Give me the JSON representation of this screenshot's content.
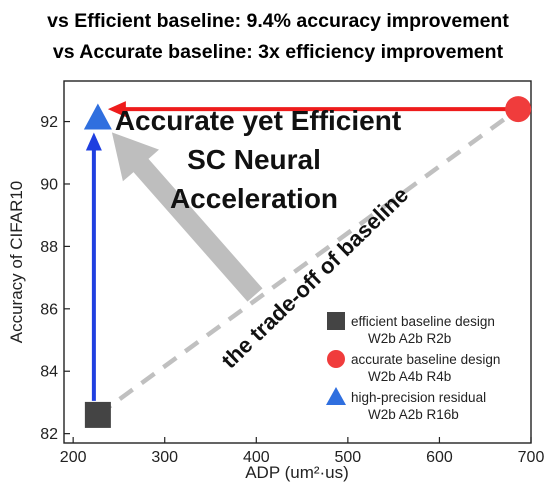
{
  "chart_data": {
    "type": "scatter",
    "headline": [
      "vs Efficient baseline: 9.4% accuracy improvement",
      "vs Accurate baseline: 3x efficiency improvement"
    ],
    "xlabel": "ADP (um²·us)",
    "ylabel": "Accuracy of CIFAR10",
    "xlim": [
      190,
      700
    ],
    "ylim": [
      81.7,
      93.3
    ],
    "xticks": [
      200,
      300,
      400,
      500,
      600,
      700
    ],
    "yticks": [
      82,
      84,
      86,
      88,
      90,
      92
    ],
    "grid": false,
    "legend_position": "bottom-right",
    "series": [
      {
        "name": "efficient baseline design",
        "config": "W2b A2b R2b",
        "marker": "square",
        "color": "#444444",
        "x": 227,
        "y": 82.6
      },
      {
        "name": "accurate baseline design",
        "config": "W2b A4b R4b",
        "marker": "circle",
        "color": "#f03c3c",
        "x": 686,
        "y": 92.4
      },
      {
        "name": "high-precision residual",
        "config": "W2b A2b R16b",
        "marker": "triangle",
        "color": "#2f6fdf",
        "x": 227,
        "y": 92.1
      }
    ],
    "annotations": {
      "main": [
        "Accurate yet Efficient",
        "SC Neural",
        "Acceleration"
      ],
      "tradeoff": "the trade-off of baseline"
    },
    "colors": {
      "tradeoff_line": "#c0c0c0",
      "big_arrow": "#bebebe",
      "red_arrow": "#ee1c1c",
      "blue_arrow": "#1f3fe0"
    }
  }
}
